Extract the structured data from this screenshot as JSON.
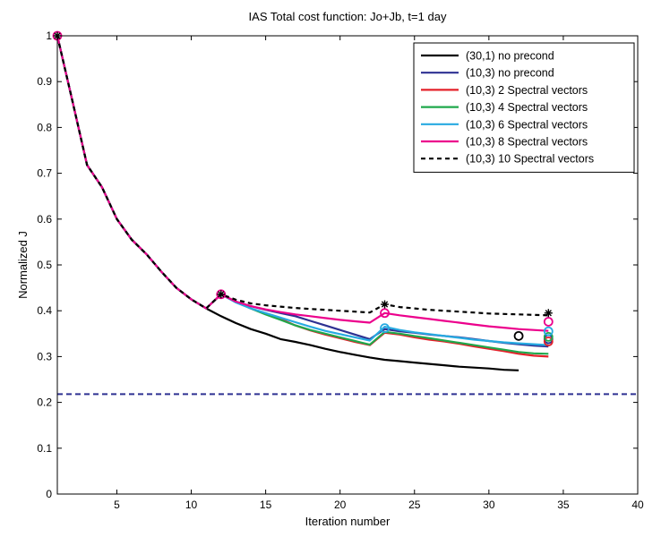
{
  "chart_data": {
    "type": "line",
    "title": "IAS Total cost function: Jo+Jb, t=1 day",
    "xlabel": "Iteration number",
    "ylabel": "Normalized J",
    "xlim": [
      1,
      40
    ],
    "ylim": [
      0,
      1
    ],
    "x_ticks": [
      "5",
      "10",
      "15",
      "20",
      "25",
      "30",
      "35",
      "40"
    ],
    "y_ticks": [
      "0",
      "0.1",
      "0.2",
      "0.3",
      "0.4",
      "0.5",
      "0.6",
      "0.7",
      "0.8",
      "0.9",
      "1"
    ],
    "legend_position": "top-right",
    "grid": false,
    "reference_line": {
      "y": 0.218,
      "color": "#2e3192",
      "style": "dashed"
    },
    "series": [
      {
        "name": "(30,1) no precond",
        "color": "#000000",
        "style": "solid",
        "x": [
          1,
          2,
          3,
          4,
          5,
          6,
          7,
          8,
          9,
          10,
          11,
          12,
          13,
          14,
          15,
          16,
          17,
          18,
          19,
          20,
          21,
          22,
          23,
          24,
          25,
          26,
          27,
          28,
          29,
          30,
          31,
          32
        ],
        "y": [
          1.0,
          0.86,
          0.718,
          0.67,
          0.6,
          0.555,
          0.523,
          0.485,
          0.45,
          0.425,
          0.405,
          0.388,
          0.373,
          0.36,
          0.35,
          0.338,
          0.332,
          0.325,
          0.317,
          0.31,
          0.304,
          0.298,
          0.293,
          0.29,
          0.287,
          0.284,
          0.281,
          0.278,
          0.276,
          0.274,
          0.271,
          0.27
        ],
        "markers": [
          {
            "x": 32,
            "y": 0.345,
            "symbol": "o"
          }
        ]
      },
      {
        "name": "(10,3) no precond",
        "color": "#2e3192",
        "style": "solid",
        "x": [
          1,
          2,
          3,
          4,
          5,
          6,
          7,
          8,
          9,
          10,
          11,
          12,
          13,
          14,
          15,
          16,
          17,
          18,
          19,
          20,
          21,
          22,
          23,
          24,
          25,
          26,
          27,
          28,
          29,
          30,
          31,
          32,
          33,
          34
        ],
        "y": [
          1.0,
          0.86,
          0.718,
          0.67,
          0.6,
          0.555,
          0.523,
          0.485,
          0.45,
          0.425,
          0.405,
          0.436,
          0.42,
          0.41,
          0.402,
          0.395,
          0.388,
          0.378,
          0.368,
          0.358,
          0.348,
          0.338,
          0.36,
          0.355,
          0.352,
          0.348,
          0.345,
          0.342,
          0.338,
          0.334,
          0.33,
          0.327,
          0.324,
          0.322
        ],
        "markers": [
          {
            "x": 34,
            "y": 0.338,
            "symbol": "o"
          }
        ]
      },
      {
        "name": "(10,3) 2 Spectral vectors",
        "color": "#e4202a",
        "style": "solid",
        "x": [
          1,
          2,
          3,
          4,
          5,
          6,
          7,
          8,
          9,
          10,
          11,
          12,
          13,
          14,
          15,
          16,
          17,
          18,
          19,
          20,
          21,
          22,
          23,
          24,
          25,
          26,
          27,
          28,
          29,
          30,
          31,
          32,
          33,
          34
        ],
        "y": [
          1.0,
          0.86,
          0.718,
          0.67,
          0.6,
          0.555,
          0.523,
          0.485,
          0.45,
          0.425,
          0.405,
          0.436,
          0.42,
          0.405,
          0.393,
          0.382,
          0.368,
          0.357,
          0.348,
          0.34,
          0.332,
          0.325,
          0.352,
          0.348,
          0.342,
          0.337,
          0.333,
          0.328,
          0.322,
          0.317,
          0.312,
          0.306,
          0.302,
          0.3
        ],
        "markers": [
          {
            "x": 34,
            "y": 0.333,
            "symbol": "o"
          }
        ]
      },
      {
        "name": "(10,3) 4 Spectral vectors",
        "color": "#1fa84b",
        "style": "solid",
        "x": [
          1,
          2,
          3,
          4,
          5,
          6,
          7,
          8,
          9,
          10,
          11,
          12,
          13,
          14,
          15,
          16,
          17,
          18,
          19,
          20,
          21,
          22,
          23,
          24,
          25,
          26,
          27,
          28,
          29,
          30,
          31,
          32,
          33,
          34
        ],
        "y": [
          1.0,
          0.86,
          0.718,
          0.67,
          0.6,
          0.555,
          0.523,
          0.485,
          0.45,
          0.425,
          0.405,
          0.436,
          0.42,
          0.405,
          0.392,
          0.38,
          0.368,
          0.358,
          0.35,
          0.342,
          0.334,
          0.326,
          0.354,
          0.35,
          0.345,
          0.34,
          0.335,
          0.33,
          0.325,
          0.32,
          0.315,
          0.31,
          0.307,
          0.306
        ],
        "markers": [
          {
            "x": 34,
            "y": 0.343,
            "symbol": "o"
          }
        ]
      },
      {
        "name": "(10,3) 6 Spectral vectors",
        "color": "#27aae1",
        "style": "solid",
        "x": [
          1,
          2,
          3,
          4,
          5,
          6,
          7,
          8,
          9,
          10,
          11,
          12,
          13,
          14,
          15,
          16,
          17,
          18,
          19,
          20,
          21,
          22,
          23,
          24,
          25,
          26,
          27,
          28,
          29,
          30,
          31,
          32,
          33,
          34
        ],
        "y": [
          1.0,
          0.86,
          0.718,
          0.67,
          0.6,
          0.555,
          0.523,
          0.485,
          0.45,
          0.425,
          0.405,
          0.436,
          0.418,
          0.405,
          0.395,
          0.385,
          0.375,
          0.365,
          0.356,
          0.349,
          0.342,
          0.335,
          0.365,
          0.358,
          0.353,
          0.349,
          0.345,
          0.341,
          0.337,
          0.334,
          0.331,
          0.329,
          0.327,
          0.325
        ],
        "markers": [
          {
            "x": 23,
            "y": 0.362,
            "symbol": "o"
          },
          {
            "x": 34,
            "y": 0.355,
            "symbol": "o"
          }
        ]
      },
      {
        "name": "(10,3) 8 Spectral vectors",
        "color": "#ec008c",
        "style": "solid",
        "x": [
          1,
          2,
          3,
          4,
          5,
          6,
          7,
          8,
          9,
          10,
          11,
          12,
          13,
          14,
          15,
          16,
          17,
          18,
          19,
          20,
          21,
          22,
          23,
          24,
          25,
          26,
          27,
          28,
          29,
          30,
          31,
          32,
          33,
          34
        ],
        "y": [
          1.0,
          0.86,
          0.718,
          0.67,
          0.6,
          0.555,
          0.523,
          0.485,
          0.45,
          0.425,
          0.405,
          0.436,
          0.42,
          0.41,
          0.403,
          0.397,
          0.392,
          0.388,
          0.384,
          0.38,
          0.377,
          0.374,
          0.395,
          0.39,
          0.386,
          0.382,
          0.378,
          0.374,
          0.37,
          0.366,
          0.363,
          0.36,
          0.358,
          0.356
        ],
        "markers": [
          {
            "x": 1,
            "y": 1.0,
            "symbol": "o"
          },
          {
            "x": 12,
            "y": 0.436,
            "symbol": "o"
          },
          {
            "x": 23,
            "y": 0.395,
            "symbol": "o"
          },
          {
            "x": 34,
            "y": 0.376,
            "symbol": "o"
          }
        ]
      },
      {
        "name": "(10,3) 10 Spectral vectors",
        "color": "#000000",
        "style": "dashed",
        "x": [
          1,
          2,
          3,
          4,
          5,
          6,
          7,
          8,
          9,
          10,
          11,
          12,
          13,
          14,
          15,
          16,
          17,
          18,
          19,
          20,
          21,
          22,
          23,
          24,
          25,
          26,
          27,
          28,
          29,
          30,
          31,
          32,
          33,
          34
        ],
        "y": [
          1.0,
          0.86,
          0.718,
          0.67,
          0.6,
          0.555,
          0.523,
          0.485,
          0.45,
          0.425,
          0.405,
          0.436,
          0.424,
          0.416,
          0.412,
          0.409,
          0.406,
          0.404,
          0.402,
          0.4,
          0.398,
          0.396,
          0.414,
          0.408,
          0.405,
          0.402,
          0.4,
          0.398,
          0.396,
          0.394,
          0.393,
          0.392,
          0.391,
          0.39
        ],
        "markers": [
          {
            "x": 1,
            "y": 1.0,
            "symbol": "*"
          },
          {
            "x": 12,
            "y": 0.436,
            "symbol": "*"
          },
          {
            "x": 23,
            "y": 0.414,
            "symbol": "*"
          },
          {
            "x": 34,
            "y": 0.395,
            "symbol": "*"
          }
        ]
      }
    ]
  }
}
